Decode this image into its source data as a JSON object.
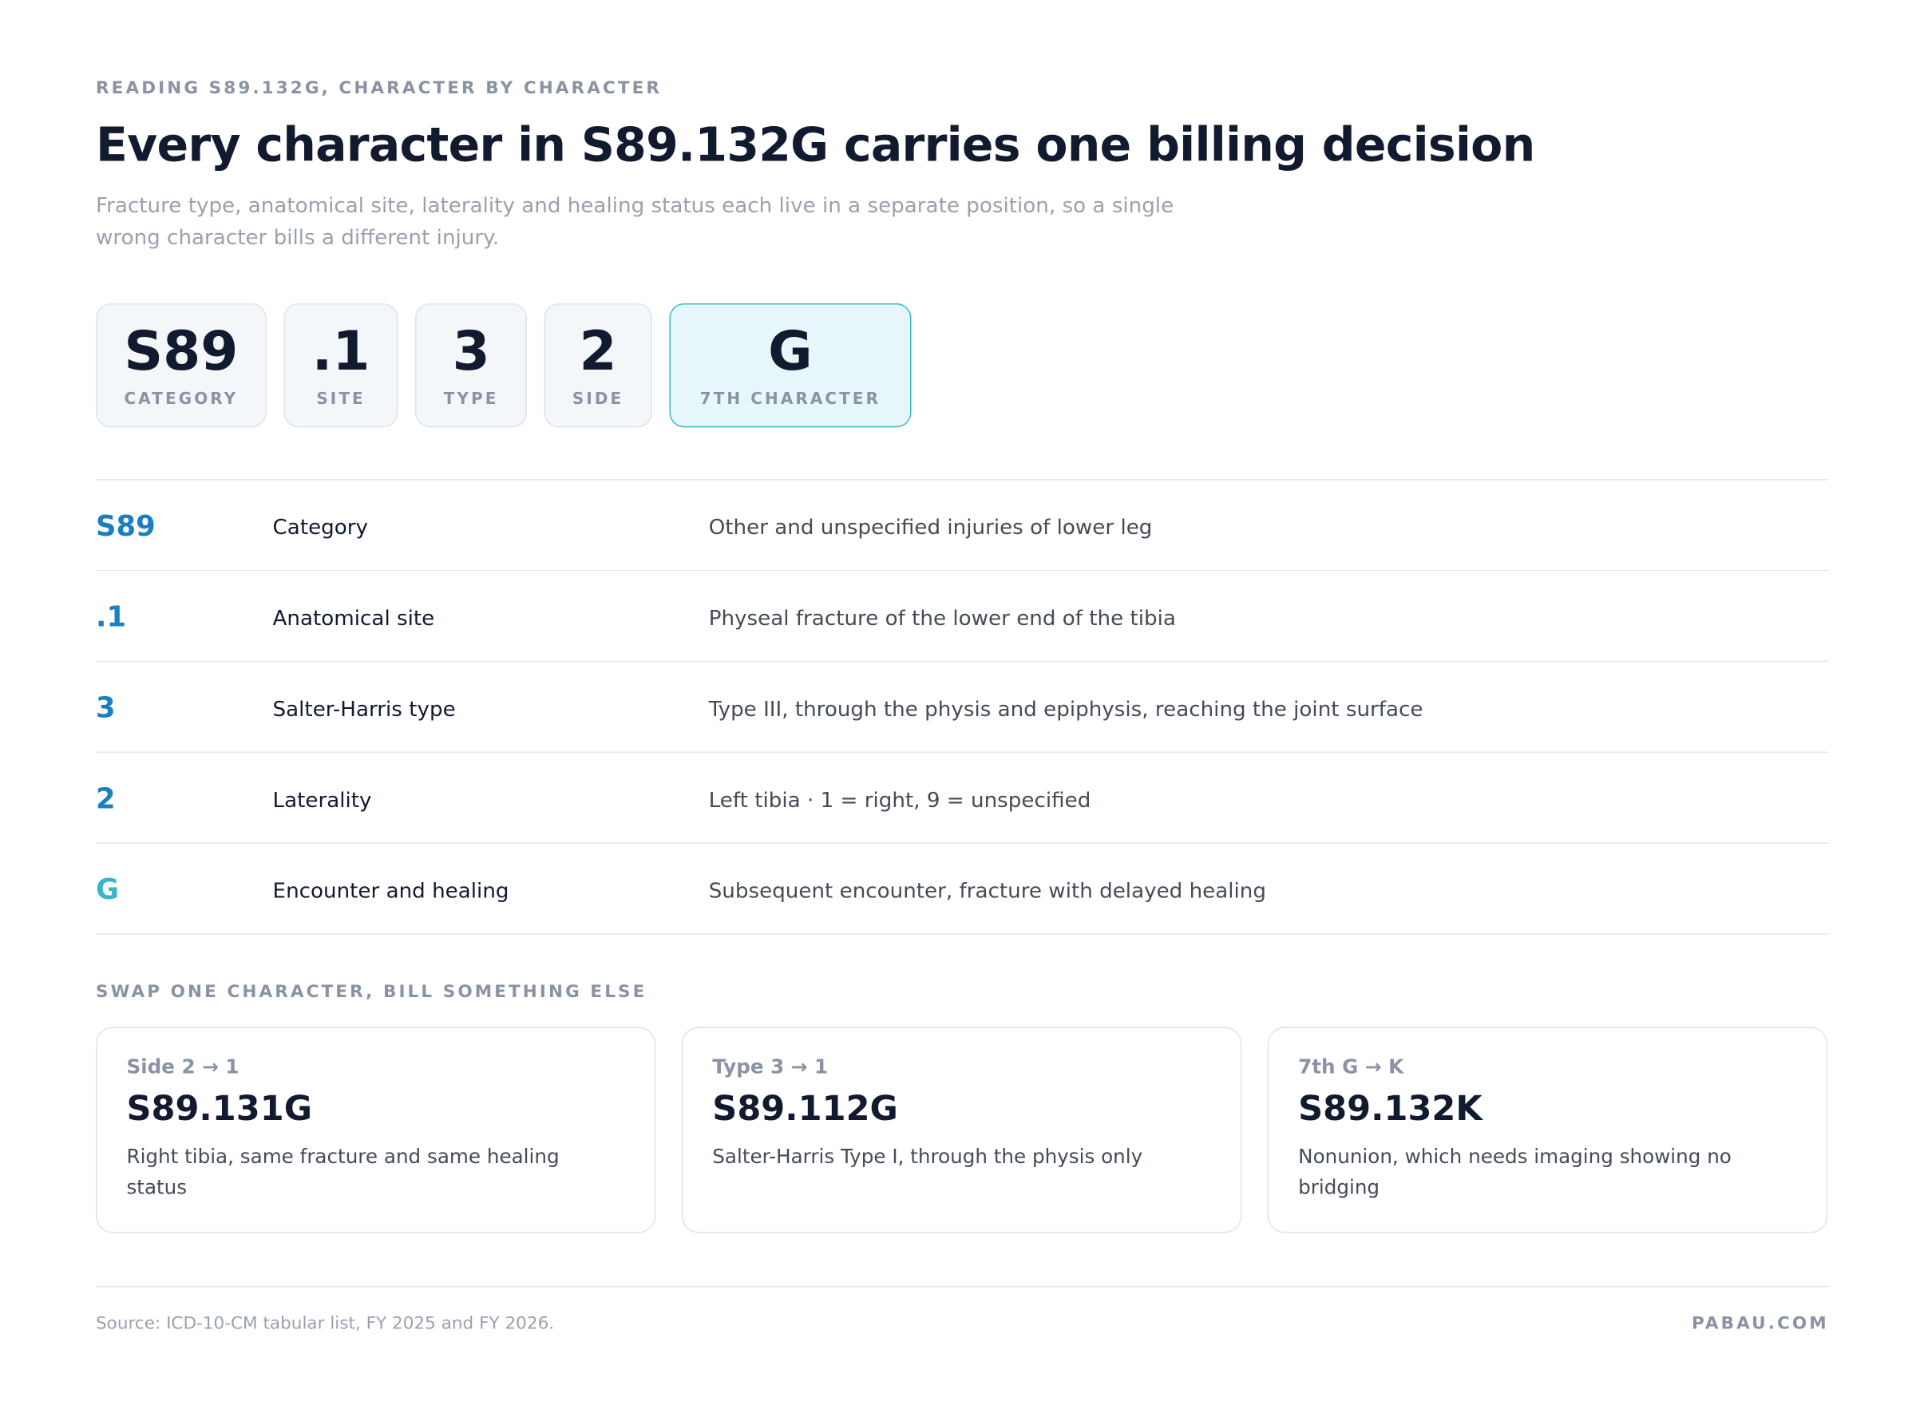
{
  "eyebrow": "READING S89.132G, CHARACTER BY CHARACTER",
  "title": "Every character in S89.132G carries one billing decision",
  "subtitle": "Fracture type, anatomical site, laterality and healing status each live in a separate position, so a single wrong character bills a different injury.",
  "segments": [
    {
      "code": "S89",
      "label": "CATEGORY"
    },
    {
      "code": ".1",
      "label": "SITE"
    },
    {
      "code": "3",
      "label": "TYPE"
    },
    {
      "code": "2",
      "label": "SIDE"
    },
    {
      "code": "G",
      "label": "7TH CHARACTER",
      "highlight": true
    }
  ],
  "rows": [
    {
      "code": "S89",
      "name": "Category",
      "description": "Other and unspecified injuries of lower leg"
    },
    {
      "code": ".1",
      "name": "Anatomical site",
      "description": "Physeal fracture of the lower end of the tibia"
    },
    {
      "code": "3",
      "name": "Salter-Harris type",
      "description": "Type III, through the physis and epiphysis, reaching the joint surface"
    },
    {
      "code": "2",
      "name": "Laterality",
      "description": "Left tibia · 1 = right, 9 = unspecified"
    },
    {
      "code": "G",
      "name": "Encounter and healing",
      "description": "Subsequent encounter, fracture with delayed healing",
      "highlight": true
    }
  ],
  "swap_heading": "SWAP ONE CHARACTER, BILL SOMETHING ELSE",
  "swaps": [
    {
      "label": "Side 2 → 1",
      "code": "S89.131G",
      "description": "Right tibia, same fracture and same healing status"
    },
    {
      "label": "Type 3 → 1",
      "code": "S89.112G",
      "description": "Salter-Harris Type I, through the physis only"
    },
    {
      "label": "7th G → K",
      "code": "S89.132K",
      "description": "Nonunion, which needs imaging showing no bridging"
    }
  ],
  "footer": {
    "source": "Source: ICD-10-CM tabular list, FY 2025 and FY 2026.",
    "brand": "PABAU.COM"
  }
}
